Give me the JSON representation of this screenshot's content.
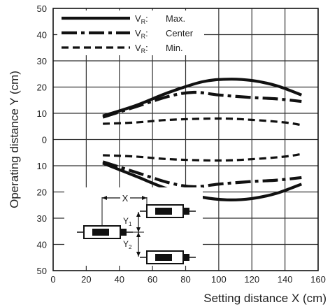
{
  "chart_data": {
    "type": "line",
    "xlabel": "Setting distance X (cm)",
    "ylabel": "Operating distance Y (cm)",
    "xlim": [
      0,
      160
    ],
    "ylim": [
      -50,
      50
    ],
    "x_ticks": [
      "0",
      "20",
      "40",
      "60",
      "80",
      "100",
      "120",
      "140",
      "160"
    ],
    "y_ticks": [
      {
        "value": 50,
        "label": "50"
      },
      {
        "value": 40,
        "label": "40"
      },
      {
        "value": 30,
        "label": "30"
      },
      {
        "value": 20,
        "label": "20"
      },
      {
        "value": 10,
        "label": "10"
      },
      {
        "value": 0,
        "label": "0"
      },
      {
        "value": -10,
        "label": "10"
      },
      {
        "value": -20,
        "label": "20"
      },
      {
        "value": -30,
        "label": "30"
      },
      {
        "value": -40,
        "label": "40"
      },
      {
        "value": -50,
        "label": "50"
      }
    ],
    "grid": true,
    "legend_position": "top-left",
    "series": [
      {
        "name": "Max.",
        "legend_prefix": "V",
        "legend_sub": "R",
        "legend_colon": ":",
        "style": "solid",
        "upper": [
          [
            30,
            9
          ],
          [
            50,
            13
          ],
          [
            70,
            18
          ],
          [
            90,
            22
          ],
          [
            105,
            23
          ],
          [
            120,
            22.5
          ],
          [
            135,
            20.5
          ],
          [
            150,
            17
          ]
        ],
        "lower": [
          [
            30,
            -9
          ],
          [
            50,
            -14
          ],
          [
            70,
            -19
          ],
          [
            90,
            -22
          ],
          [
            105,
            -23
          ],
          [
            120,
            -22.5
          ],
          [
            135,
            -20.5
          ],
          [
            150,
            -17
          ]
        ]
      },
      {
        "name": "Center",
        "legend_prefix": "V",
        "legend_sub": "R",
        "legend_colon": ":",
        "style": "dash-dot",
        "upper": [
          [
            30,
            8.5
          ],
          [
            50,
            12.5
          ],
          [
            70,
            16.5
          ],
          [
            85,
            18
          ],
          [
            100,
            17
          ],
          [
            120,
            16
          ],
          [
            135,
            15.5
          ],
          [
            150,
            14.5
          ]
        ],
        "lower": [
          [
            30,
            -8.5
          ],
          [
            50,
            -12.5
          ],
          [
            70,
            -16.5
          ],
          [
            85,
            -18
          ],
          [
            100,
            -17
          ],
          [
            120,
            -16
          ],
          [
            135,
            -15.5
          ],
          [
            150,
            -14.5
          ]
        ]
      },
      {
        "name": "Min.",
        "legend_prefix": "V",
        "legend_sub": "R",
        "legend_colon": ":",
        "style": "dashed",
        "upper": [
          [
            30,
            6
          ],
          [
            50,
            6.5
          ],
          [
            70,
            7.5
          ],
          [
            100,
            8
          ],
          [
            120,
            7.5
          ],
          [
            140,
            6.5
          ],
          [
            150,
            5.5
          ]
        ],
        "lower": [
          [
            30,
            -6
          ],
          [
            50,
            -6.5
          ],
          [
            70,
            -7.5
          ],
          [
            100,
            -8
          ],
          [
            120,
            -7.5
          ],
          [
            140,
            -6.5
          ],
          [
            150,
            -5.5
          ]
        ]
      }
    ],
    "inset": {
      "x_label": "X",
      "y1_label": "Y",
      "y1_sub": "1",
      "y2_label": "Y",
      "y2_sub": "2"
    }
  }
}
